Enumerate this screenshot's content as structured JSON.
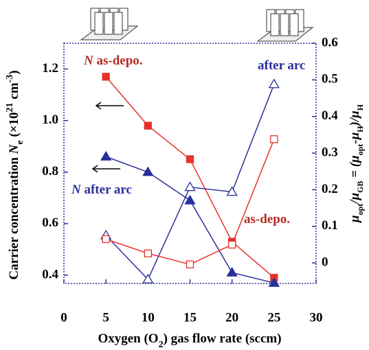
{
  "chart_data": {
    "type": "line",
    "xlabel": [
      "Oxygen (O",
      "2",
      ") gas flow rate (sccm)"
    ],
    "ylabel": [
      "Carrier concentration ",
      "N",
      "e",
      " (",
      "×",
      "10",
      "21",
      " cm",
      "-3",
      ")"
    ],
    "y2label": [
      "μ",
      "opt",
      "/μ",
      "GB",
      " = (μ",
      "opt",
      "-μ",
      "H",
      ")/μ",
      "H"
    ],
    "x": [
      5,
      10,
      15,
      20,
      25
    ],
    "xlim": [
      0,
      30
    ],
    "xticks": [
      0,
      5,
      10,
      15,
      20,
      25,
      30
    ],
    "ylim": [
      0.368,
      1.3
    ],
    "yticks": [
      0.4,
      0.6,
      0.8,
      1.0,
      1.2
    ],
    "y2lim": [
      -0.056,
      0.6
    ],
    "y2ticks": [
      0,
      0.1,
      0.2,
      0.3,
      0.4,
      0.5,
      0.6
    ],
    "series": [
      {
        "color": "#e8312a",
        "marker": "square",
        "filled": true,
        "axis": "y",
        "values": [
          1.17,
          0.98,
          0.85,
          0.53,
          0.39
        ]
      },
      {
        "color": "#2a2f9a",
        "marker": "triangle",
        "filled": true,
        "axis": "y",
        "values": [
          0.86,
          0.8,
          0.69,
          0.41,
          0.37
        ]
      },
      {
        "color": "#2a2f9a",
        "marker": "triangle",
        "filled": false,
        "axis": "y2",
        "values": [
          0.075,
          -0.045,
          0.207,
          0.194,
          0.488
        ]
      },
      {
        "color": "#e8312a",
        "marker": "square",
        "filled": false,
        "axis": "y2",
        "values": [
          0.065,
          0.026,
          -0.004,
          0.05,
          0.338
        ]
      }
    ],
    "annotations": [
      {
        "text": [
          "N",
          " as-depo."
        ],
        "color": "#b52a22"
      },
      {
        "text": [
          "after arc"
        ],
        "color": "#2a2f9a"
      },
      {
        "text": [
          "N",
          " after arc"
        ],
        "color": "#2a2f9a"
      },
      {
        "text": [
          "as-depo."
        ],
        "color": "#b52a22"
      }
    ]
  }
}
